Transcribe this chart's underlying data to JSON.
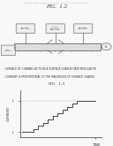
{
  "background_color": "#f8f8f6",
  "page_bg": "#f8f8f6",
  "top_header": "Patent Application Publication    Feb. 14, 2013   Sheet 8 of 12   US 2013/0040343 A1",
  "fig1_label": "FIG.  1.2",
  "fig2_label": "FIG.  1.3",
  "caption1": "- SURFACE OF CHANNEL ACTS AS A SURFACE CHARGE GATE MODULATOR",
  "caption2": "- CURRENT IS PROPORTIONAL TO THE MAGNITUDE OF SURFACE CHARGE",
  "ylabel": "CURRENT",
  "ytick1": "I₁",
  "ytick2": "I₀",
  "xlabel": "TIME",
  "curve_color": "#444444",
  "axis_color": "#555555",
  "text_color": "#333333",
  "header_color": "#999999",
  "diagram_color": "#666666",
  "box_face": "#eeeeee",
  "tube_face": "#dddddd"
}
